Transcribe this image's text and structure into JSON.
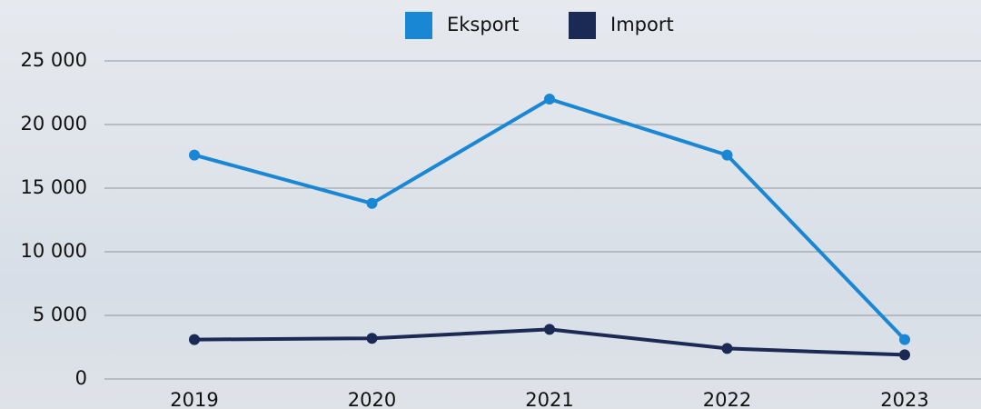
{
  "chart_data": {
    "type": "line",
    "categories": [
      "2019",
      "2020",
      "2021",
      "2022",
      "2023"
    ],
    "series": [
      {
        "name": "Eksport",
        "color": "#1a87d4",
        "values": [
          17600,
          13800,
          22000,
          17600,
          3100
        ]
      },
      {
        "name": "Import",
        "color": "#1b2a55",
        "values": [
          3100,
          3200,
          3900,
          2400,
          1900
        ]
      }
    ],
    "ylim": [
      0,
      25000
    ],
    "yticks": [
      0,
      {
        "value": 5000,
        "label": "5 000"
      },
      {
        "value": 10000,
        "label": "10 000"
      },
      {
        "value": 15000,
        "label": "15 000"
      },
      {
        "value": 20000,
        "label": "20 000"
      },
      {
        "value": 25000,
        "label": "25 000"
      }
    ],
    "grid": true,
    "legend": "top"
  }
}
